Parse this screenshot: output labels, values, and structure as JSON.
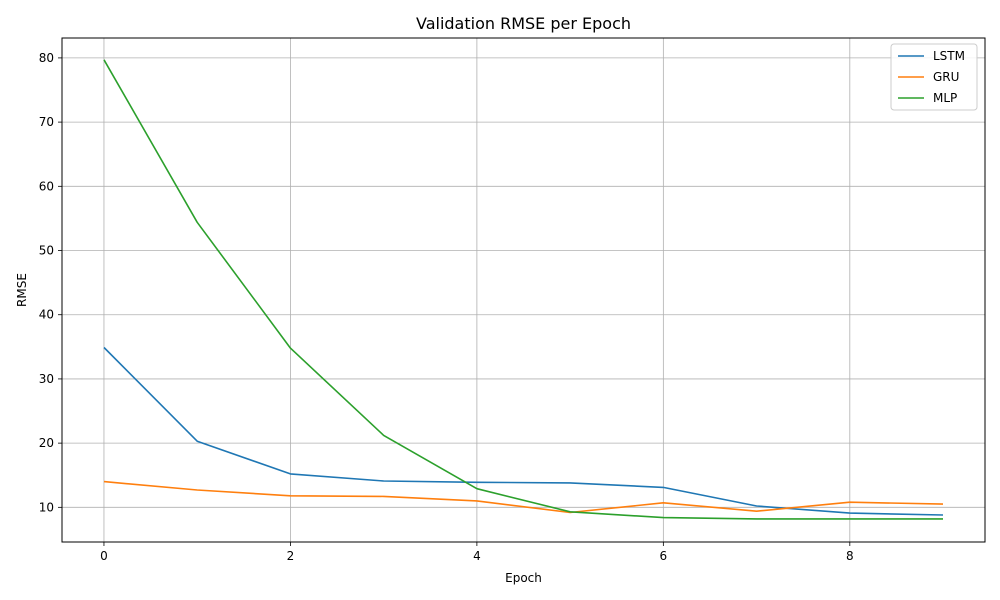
{
  "chart_data": {
    "type": "line",
    "title": "Validation RMSE per Epoch",
    "xlabel": "Epoch",
    "ylabel": "RMSE",
    "xlim": [
      -0.45,
      9.45
    ],
    "ylim": [
      4.6,
      83.1
    ],
    "xticks": [
      0,
      2,
      4,
      6,
      8
    ],
    "yticks": [
      10,
      20,
      30,
      40,
      50,
      60,
      70,
      80
    ],
    "grid": true,
    "legend_position": "top-right",
    "x": [
      0,
      1,
      2,
      3,
      4,
      5,
      6,
      7,
      8,
      9
    ],
    "series": [
      {
        "name": "LSTM",
        "color": "#1f77b4",
        "values": [
          34.9,
          20.3,
          15.2,
          14.1,
          13.9,
          13.8,
          13.1,
          10.2,
          9.1,
          8.8
        ]
      },
      {
        "name": "GRU",
        "color": "#ff7f0e",
        "values": [
          14.0,
          12.7,
          11.8,
          11.7,
          11.0,
          9.2,
          10.7,
          9.4,
          10.8,
          10.5
        ]
      },
      {
        "name": "MLP",
        "color": "#2ca02c",
        "values": [
          79.7,
          54.4,
          34.8,
          21.2,
          12.9,
          9.3,
          8.4,
          8.2,
          8.2,
          8.2
        ]
      }
    ]
  }
}
